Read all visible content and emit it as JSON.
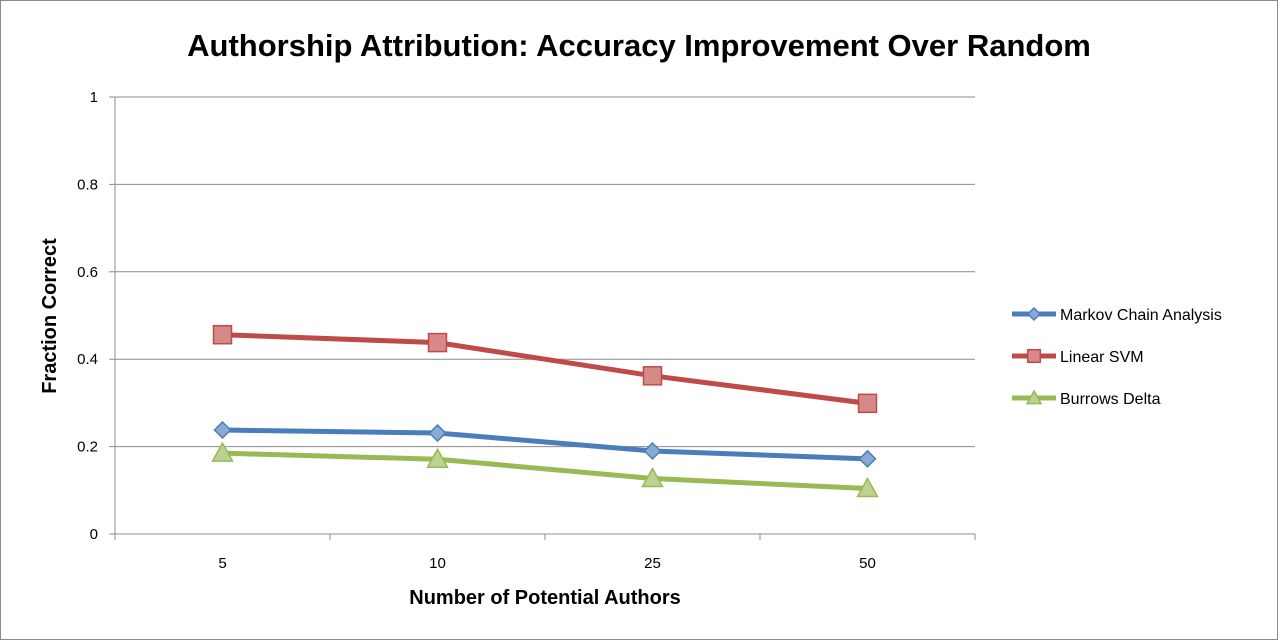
{
  "chart_data": {
    "type": "line",
    "title": "Authorship Attribution: Accuracy Improvement Over Random",
    "xlabel": "Number of Potential Authors",
    "ylabel": "Fraction Correct",
    "categories": [
      "5",
      "10",
      "25",
      "50"
    ],
    "ylim": [
      0,
      1
    ],
    "yticks": [
      "0",
      "0.2",
      "0.4",
      "0.6",
      "0.8",
      "1"
    ],
    "grid": true,
    "legend_position": "right",
    "series": [
      {
        "name": "Markov Chain Analysis",
        "values": [
          0.238,
          0.231,
          0.19,
          0.172
        ],
        "color": "#4a7ebb",
        "marker": "diamond"
      },
      {
        "name": "Linear SVM",
        "values": [
          0.456,
          0.438,
          0.362,
          0.299
        ],
        "color": "#be4b48",
        "marker": "square"
      },
      {
        "name": "Burrows Delta",
        "values": [
          0.185,
          0.171,
          0.127,
          0.104
        ],
        "color": "#98b954",
        "marker": "triangle"
      }
    ]
  }
}
